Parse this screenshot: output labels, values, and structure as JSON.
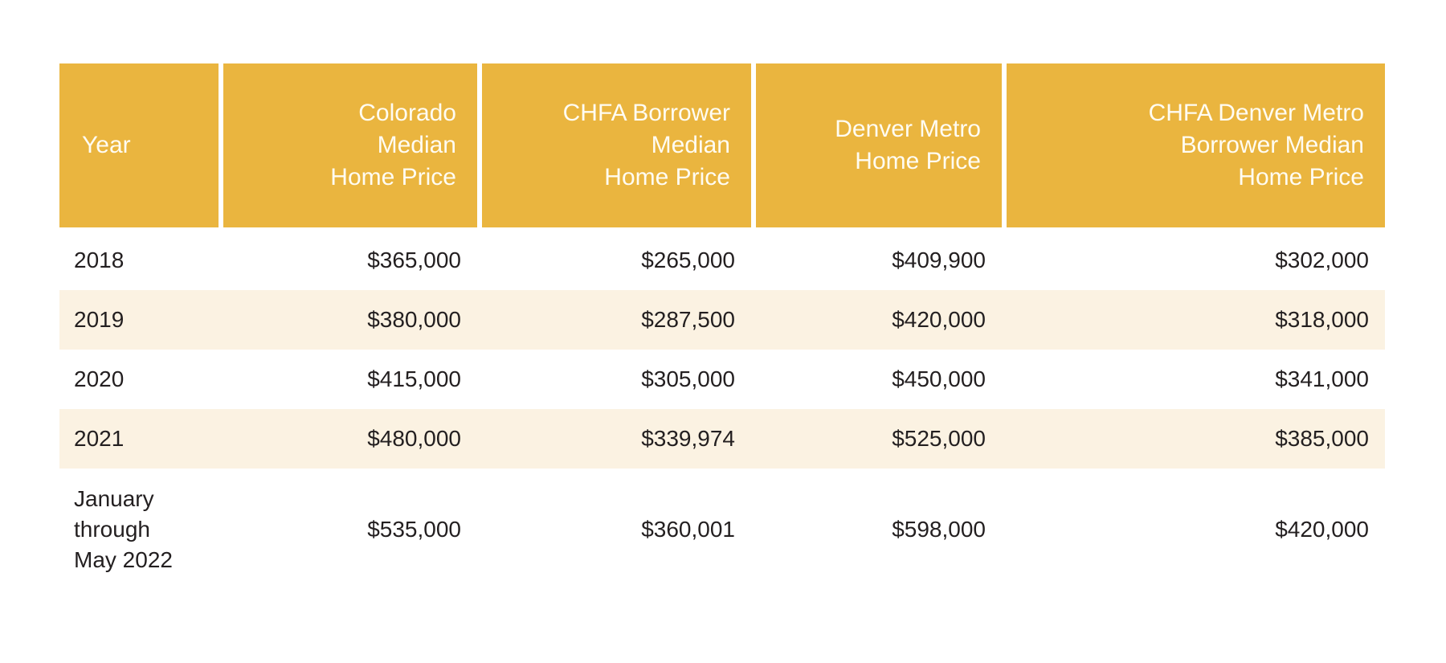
{
  "colors": {
    "header_bg": "#EAB53F",
    "header_text": "#FFFCF2",
    "stripe_bg": "#FBF2E2",
    "row_bg": "#FFFFFF",
    "body_text": "#231F20"
  },
  "table": {
    "columns": [
      {
        "label": "Year",
        "align": "left"
      },
      {
        "label": "Colorado\nMedian\nHome Price",
        "align": "right"
      },
      {
        "label": "CHFA Borrower\nMedian\nHome Price",
        "align": "right"
      },
      {
        "label": "Denver Metro\nHome Price",
        "align": "right"
      },
      {
        "label": "CHFA Denver Metro\nBorrower Median\nHome Price",
        "align": "right"
      }
    ],
    "rows": [
      {
        "cells": [
          "2018",
          "$365,000",
          "$265,000",
          "$409,900",
          "$302,000"
        ]
      },
      {
        "cells": [
          "2019",
          "$380,000",
          "$287,500",
          "$420,000",
          "$318,000"
        ]
      },
      {
        "cells": [
          "2020",
          "$415,000",
          "$305,000",
          "$450,000",
          "$341,000"
        ]
      },
      {
        "cells": [
          "2021",
          "$480,000",
          "$339,974",
          "$525,000",
          "$385,000"
        ]
      },
      {
        "cells": [
          "January\nthrough\nMay 2022",
          "$535,000",
          "$360,001",
          "$598,000",
          "$420,000"
        ]
      }
    ]
  },
  "chart_data": {
    "type": "table",
    "columns": [
      "Year",
      "Colorado Median Home Price",
      "CHFA Borrower Median Home Price",
      "Denver Metro Home Price",
      "CHFA Denver Metro Borrower Median Home Price"
    ],
    "rows": [
      [
        "2018",
        365000,
        265000,
        409900,
        302000
      ],
      [
        "2019",
        380000,
        287500,
        420000,
        318000
      ],
      [
        "2020",
        415000,
        305000,
        450000,
        341000
      ],
      [
        "2021",
        480000,
        339974,
        525000,
        385000
      ],
      [
        "January through May 2022",
        535000,
        360001,
        598000,
        420000
      ]
    ],
    "layout": {
      "stripe_rows": [
        1,
        3
      ],
      "header_fill": "#EAB53F",
      "stripe_fill": "#FBF2E2",
      "value_alignment": "right"
    }
  }
}
